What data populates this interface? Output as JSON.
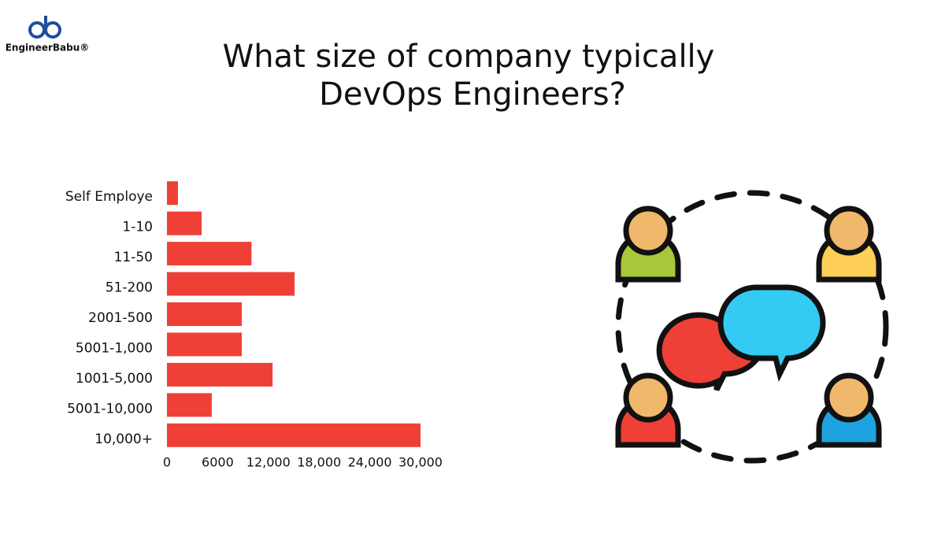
{
  "logo": "EngineerBabu®",
  "chart_data": {
    "type": "hbar",
    "title": [
      "What size of company typically",
      "DevOps Engineers?"
    ],
    "categories": [
      "Self Employe",
      "1-10",
      "11-50",
      "51-200",
      "2001-500",
      "5001-1,000",
      "1001-5,000",
      "5001-10,000",
      "10,000+"
    ],
    "values": [
      1300,
      4100,
      10000,
      15100,
      8850,
      8850,
      12500,
      5300,
      30000
    ],
    "color": "#ee4036",
    "xlim": [
      0,
      30000
    ],
    "xticks": [
      0,
      6000,
      {
        "value": 12000,
        "label": "12,000"
      },
      {
        "value": 18000,
        "label": "18,000"
      },
      {
        "value": 24000,
        "label": "24,000"
      },
      {
        "value": 30000,
        "label": "30,000"
      }
    ],
    "grid": false
  }
}
